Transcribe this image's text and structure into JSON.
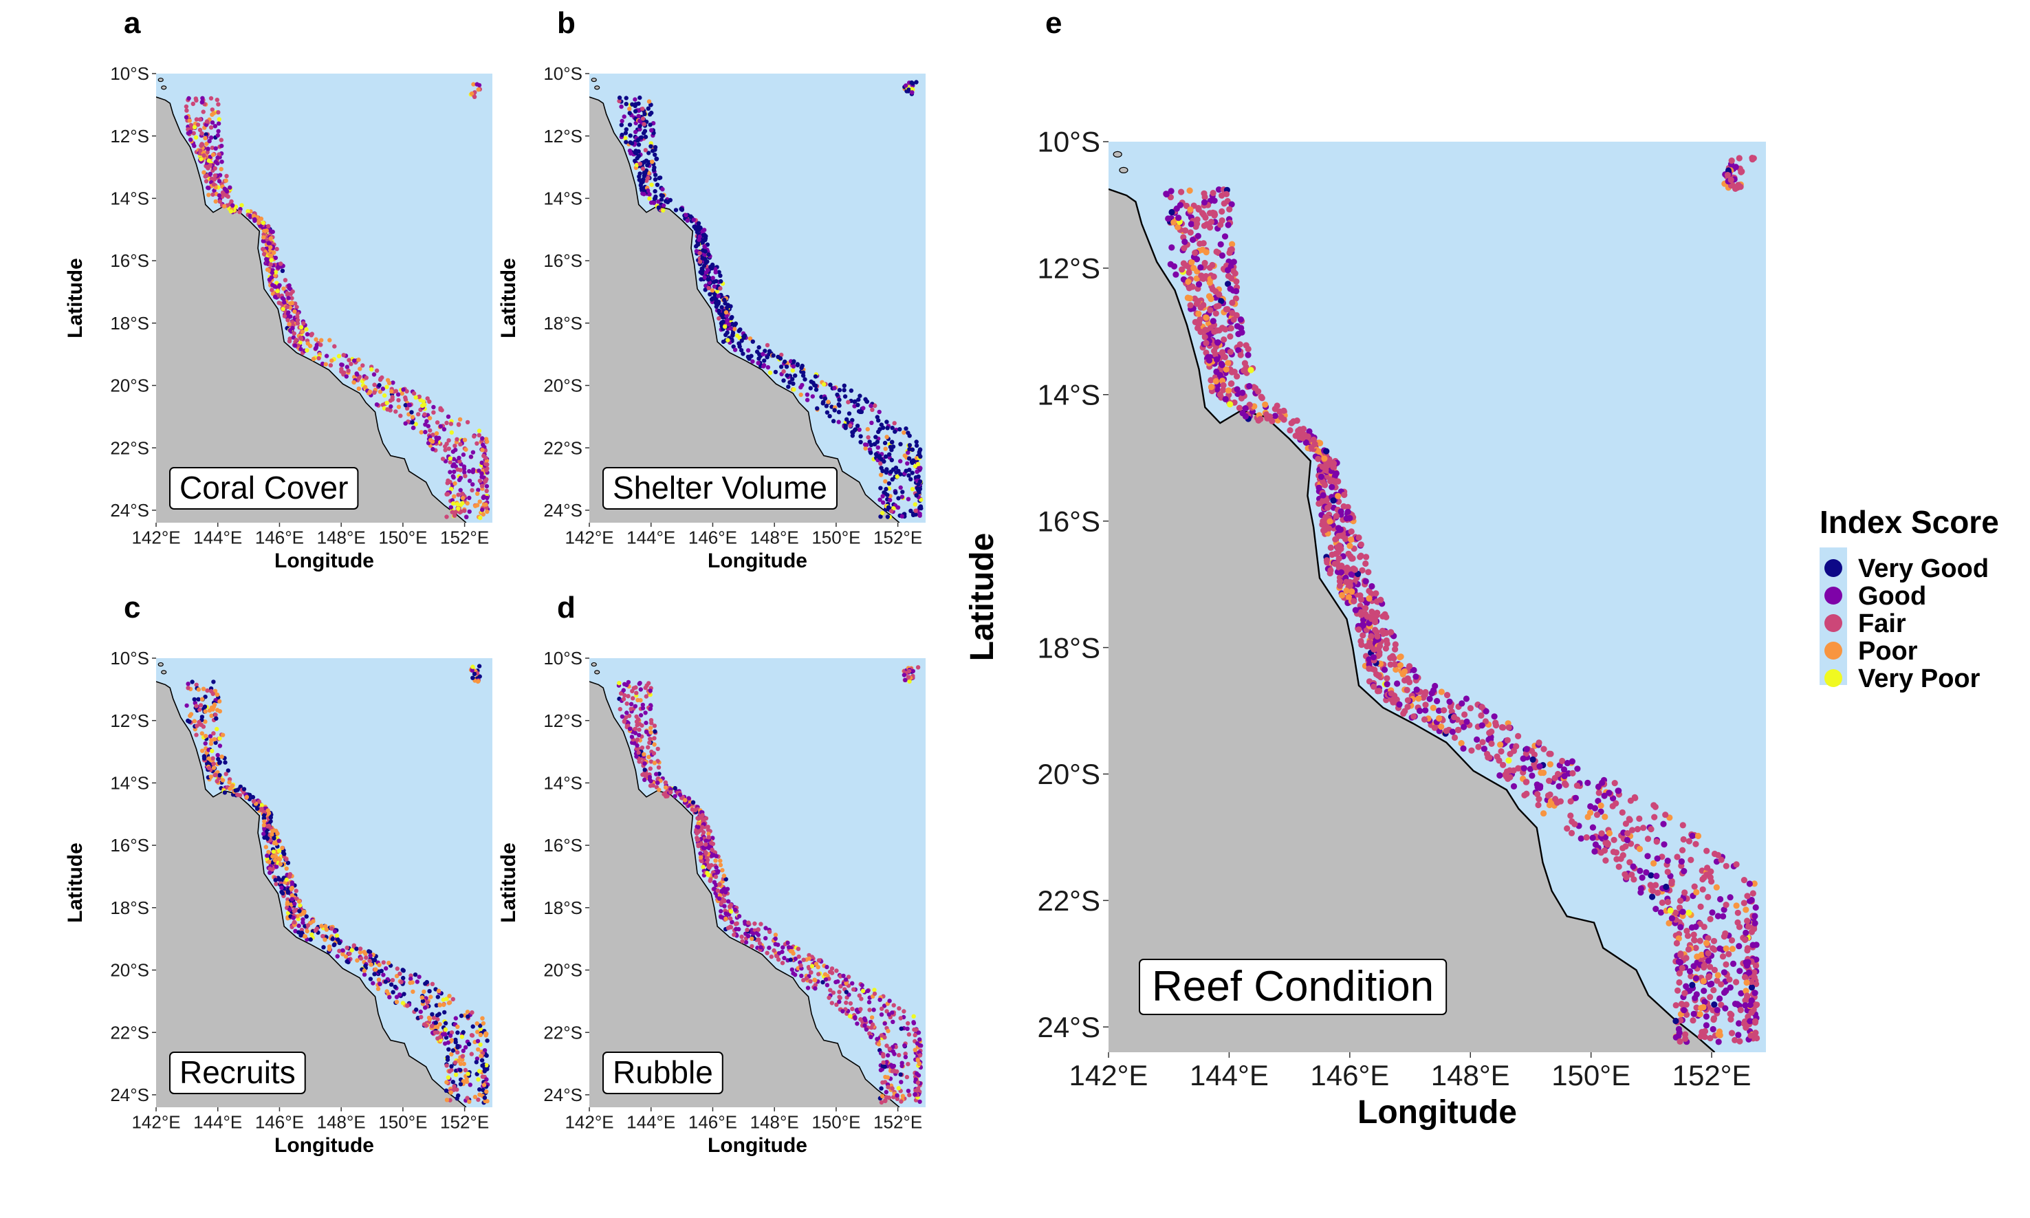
{
  "figure": {
    "legend": {
      "title": "Index Score",
      "items": [
        {
          "label": "Very Good",
          "color": "#0d0887"
        },
        {
          "label": "Good",
          "color": "#7e03a8"
        },
        {
          "label": "Fair",
          "color": "#cc4778"
        },
        {
          "label": "Poor",
          "color": "#f89540"
        },
        {
          "label": "Very Poor",
          "color": "#f0f921"
        }
      ]
    },
    "colors": {
      "ocean": "#c1e1f7",
      "land": "#bdbdbd",
      "coastline": "#000000"
    },
    "axes": {
      "xlabel": "Longitude",
      "ylabel": "Latitude",
      "xticks": [
        "142°E",
        "144°E",
        "146°E",
        "148°E",
        "150°E",
        "152°E"
      ],
      "yticks": [
        "10°S",
        "12°S",
        "14°S",
        "16°S",
        "18°S",
        "20°S",
        "22°S",
        "24°S"
      ]
    },
    "panels": [
      {
        "letter": "a",
        "title": "Coral Cover"
      },
      {
        "letter": "b",
        "title": "Shelter Volume"
      },
      {
        "letter": "c",
        "title": "Recruits"
      },
      {
        "letter": "d",
        "title": "Rubble"
      },
      {
        "letter": "e",
        "title": "Reef Condition"
      }
    ]
  },
  "chart_data": [
    {
      "type": "scatter",
      "title": "Coral Cover",
      "xlabel": "Longitude",
      "ylabel": "Latitude",
      "xlim": [
        142.0,
        152.9
      ],
      "ylim": [
        -24.4,
        -10.0
      ],
      "dominant_categories": [
        "Fair",
        "Good",
        "Poor"
      ]
    },
    {
      "type": "scatter",
      "title": "Shelter Volume",
      "xlabel": "Longitude",
      "ylabel": "Latitude",
      "xlim": [
        142.0,
        152.9
      ],
      "ylim": [
        -24.4,
        -10.0
      ],
      "dominant_categories": [
        "Very Good",
        "Good"
      ]
    },
    {
      "type": "scatter",
      "title": "Recruits",
      "xlabel": "Longitude",
      "ylabel": "Latitude",
      "xlim": [
        142.0,
        152.9
      ],
      "ylim": [
        -24.4,
        -10.0
      ],
      "dominant_categories": [
        "Poor",
        "Fair",
        "Very Good"
      ]
    },
    {
      "type": "scatter",
      "title": "Rubble",
      "xlabel": "Longitude",
      "ylabel": "Latitude",
      "xlim": [
        142.0,
        152.9
      ],
      "ylim": [
        -24.4,
        -10.0
      ],
      "dominant_categories": [
        "Fair",
        "Good",
        "Poor"
      ]
    },
    {
      "type": "scatter",
      "title": "Reef Condition",
      "xlabel": "Longitude",
      "ylabel": "Latitude",
      "xlim": [
        142.0,
        152.9
      ],
      "ylim": [
        -24.4,
        -10.0
      ],
      "dominant_categories": [
        "Fair",
        "Good"
      ]
    }
  ]
}
